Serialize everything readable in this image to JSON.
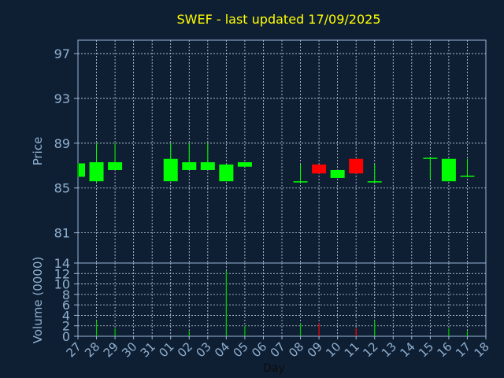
{
  "colors": {
    "background": "#0f1f33",
    "title": "#ffff00",
    "axis_text": "#8fb0d0",
    "frame": "#9ab6d8",
    "grid": "#c8d4e2",
    "up": "#00ff00",
    "down": "#ff0000",
    "volume_line": "#00cc00",
    "day_label": "#0d0d0d"
  },
  "chart_data": [
    {
      "type": "candlestick",
      "title": "SWEF - last updated 17/09/2025",
      "ylabel": "Price",
      "ylim": [
        78.3,
        98.2
      ],
      "yticks": [
        81,
        85,
        89,
        93,
        97
      ],
      "grid": true,
      "x_tick_labels": [
        "27",
        "28",
        "29",
        "30",
        "31",
        "01",
        "02",
        "03",
        "04",
        "05",
        "06",
        "07",
        "08",
        "09",
        "10",
        "11",
        "12",
        "13",
        "14",
        "15",
        "16",
        "17",
        "18"
      ],
      "candles": [
        {
          "day": "27",
          "open": 86.0,
          "close": 87.2,
          "high": 87.2,
          "low": 86.0
        },
        {
          "day": "28",
          "open": 85.6,
          "close": 87.3,
          "high": 89.0,
          "low": 85.5
        },
        {
          "day": "29",
          "open": 86.6,
          "close": 87.3,
          "high": 89.0,
          "low": 86.6
        },
        {
          "day": "01",
          "open": 85.6,
          "close": 87.6,
          "high": 89.0,
          "low": 85.6
        },
        {
          "day": "02",
          "open": 86.6,
          "close": 87.3,
          "high": 89.0,
          "low": 86.6
        },
        {
          "day": "03",
          "open": 86.6,
          "close": 87.3,
          "high": 89.0,
          "low": 86.6
        },
        {
          "day": "04",
          "open": 85.6,
          "close": 87.1,
          "high": 87.1,
          "low": 85.6
        },
        {
          "day": "05",
          "open": 86.9,
          "close": 87.3,
          "high": 87.3,
          "low": 86.9
        },
        {
          "day": "08",
          "open": 85.5,
          "close": 85.6,
          "high": 87.1,
          "low": 85.5
        },
        {
          "day": "09",
          "open": 87.1,
          "close": 86.3,
          "high": 87.1,
          "low": 86.3
        },
        {
          "day": "10",
          "open": 85.9,
          "close": 86.6,
          "high": 86.6,
          "low": 85.9
        },
        {
          "day": "11",
          "open": 87.6,
          "close": 86.3,
          "high": 87.6,
          "low": 86.3
        },
        {
          "day": "12",
          "open": 85.5,
          "close": 85.6,
          "high": 87.1,
          "low": 85.5
        },
        {
          "day": "15",
          "open": 87.6,
          "close": 87.7,
          "high": 87.7,
          "low": 85.8
        },
        {
          "day": "16",
          "open": 85.6,
          "close": 87.6,
          "high": 87.6,
          "low": 85.6
        },
        {
          "day": "17",
          "open": 86.0,
          "close": 86.1,
          "high": 87.6,
          "low": 86.0
        }
      ]
    },
    {
      "type": "bar",
      "ylabel": "Volume (0000)",
      "xlabel": "Day",
      "ylim": [
        0,
        14
      ],
      "yticks": [
        0,
        2,
        4,
        6,
        8,
        10,
        12,
        14
      ],
      "grid": true,
      "categories": [
        "28",
        "29",
        "02",
        "04",
        "05",
        "08",
        "09",
        "11",
        "12",
        "16",
        "17"
      ],
      "values": [
        3.0,
        1.5,
        1.0,
        12.5,
        2.0,
        2.5,
        2.5,
        1.5,
        3.0,
        1.5,
        1.0
      ],
      "bar_colors": [
        "up",
        "up",
        "up",
        "up",
        "up",
        "up",
        "down",
        "down",
        "up",
        "up",
        "up"
      ]
    }
  ]
}
